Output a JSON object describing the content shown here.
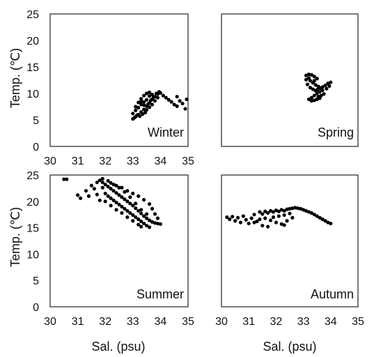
{
  "chart_data": [
    {
      "type": "scatter",
      "panel": "winter",
      "label": "Winter",
      "xlabel": "",
      "ylabel": "Temp. (℃)",
      "xlim": [
        30,
        35
      ],
      "ylim": [
        0,
        25
      ],
      "xticks": [
        "30",
        "31",
        "32",
        "33",
        "34",
        "35"
      ],
      "yticks": [
        "0",
        "5",
        "10",
        "15",
        "20",
        "25"
      ],
      "points": [
        [
          33.0,
          5.2
        ],
        [
          33.1,
          5.6
        ],
        [
          33.2,
          6.0
        ],
        [
          33.3,
          6.5
        ],
        [
          33.4,
          7.0
        ],
        [
          33.5,
          7.6
        ],
        [
          33.6,
          8.2
        ],
        [
          33.7,
          8.9
        ],
        [
          33.8,
          9.4
        ],
        [
          33.9,
          9.9
        ],
        [
          34.0,
          10.1
        ],
        [
          33.1,
          6.8
        ],
        [
          33.2,
          7.3
        ],
        [
          33.3,
          7.9
        ],
        [
          33.4,
          8.4
        ],
        [
          33.5,
          8.8
        ],
        [
          33.6,
          9.5
        ],
        [
          33.7,
          9.8
        ],
        [
          33.3,
          9.0
        ],
        [
          33.4,
          9.6
        ],
        [
          33.5,
          10.0
        ],
        [
          33.6,
          10.2
        ],
        [
          33.0,
          6.2
        ],
        [
          33.1,
          7.5
        ],
        [
          33.2,
          8.3
        ],
        [
          33.3,
          8.5
        ],
        [
          33.4,
          7.8
        ],
        [
          33.5,
          6.9
        ],
        [
          33.6,
          7.4
        ],
        [
          33.7,
          7.9
        ],
        [
          33.8,
          8.6
        ],
        [
          33.9,
          9.2
        ],
        [
          33.05,
          5.4
        ],
        [
          33.15,
          5.9
        ],
        [
          33.25,
          5.7
        ],
        [
          33.35,
          6.1
        ],
        [
          33.45,
          6.4
        ],
        [
          33.55,
          8.0
        ],
        [
          33.65,
          8.7
        ],
        [
          33.75,
          9.3
        ],
        [
          33.85,
          10.0
        ],
        [
          33.95,
          10.3
        ],
        [
          34.1,
          9.6
        ],
        [
          34.2,
          9.2
        ],
        [
          34.3,
          8.8
        ],
        [
          34.4,
          8.4
        ],
        [
          34.5,
          7.9
        ],
        [
          34.6,
          9.4
        ],
        [
          34.7,
          8.6
        ],
        [
          34.9,
          7.1
        ],
        [
          34.95,
          8.9
        ],
        [
          34.8,
          8.1
        ],
        [
          34.6,
          7.6
        ]
      ]
    },
    {
      "type": "scatter",
      "panel": "spring",
      "label": "Spring",
      "xlabel": "",
      "ylabel": "",
      "xlim": [
        30,
        35
      ],
      "ylim": [
        0,
        25
      ],
      "xticks": [],
      "yticks": [],
      "points": [
        [
          33.1,
          13.4
        ],
        [
          33.2,
          13.6
        ],
        [
          33.3,
          13.5
        ],
        [
          33.4,
          13.2
        ],
        [
          33.5,
          12.8
        ],
        [
          33.25,
          12.4
        ],
        [
          33.35,
          12.0
        ],
        [
          33.45,
          11.6
        ],
        [
          33.55,
          11.3
        ],
        [
          33.6,
          11.0
        ],
        [
          33.7,
          11.2
        ],
        [
          33.8,
          11.5
        ],
        [
          33.9,
          11.9
        ],
        [
          34.0,
          12.1
        ],
        [
          33.95,
          11.4
        ],
        [
          33.85,
          10.9
        ],
        [
          33.7,
          10.6
        ],
        [
          33.6,
          10.3
        ],
        [
          33.5,
          10.0
        ],
        [
          33.4,
          9.6
        ],
        [
          33.3,
          9.2
        ],
        [
          33.2,
          8.9
        ],
        [
          33.3,
          8.6
        ],
        [
          33.4,
          8.7
        ],
        [
          33.5,
          8.9
        ],
        [
          33.6,
          9.1
        ],
        [
          33.45,
          10.5
        ],
        [
          33.35,
          10.8
        ],
        [
          33.25,
          11.1
        ],
        [
          33.15,
          11.7
        ],
        [
          33.1,
          12.6
        ],
        [
          33.2,
          12.9
        ],
        [
          33.4,
          12.4
        ],
        [
          33.5,
          10.7
        ],
        [
          33.65,
          9.6
        ],
        [
          33.75,
          9.9
        ],
        [
          33.55,
          9.4
        ]
      ]
    },
    {
      "type": "scatter",
      "panel": "summer",
      "label": "Summer",
      "xlabel": "Sal. (psu)",
      "ylabel": "Temp. (℃)",
      "xlim": [
        30,
        35
      ],
      "ylim": [
        0,
        25
      ],
      "xticks": [
        "30",
        "31",
        "32",
        "33",
        "34",
        "35"
      ],
      "yticks": [
        "0",
        "5",
        "10",
        "15",
        "20",
        "25"
      ],
      "points": [
        [
          30.5,
          24.2
        ],
        [
          30.6,
          24.2
        ],
        [
          31.0,
          21.2
        ],
        [
          31.1,
          20.6
        ],
        [
          31.3,
          22.0
        ],
        [
          31.4,
          21.0
        ],
        [
          31.5,
          23.0
        ],
        [
          31.6,
          22.4
        ],
        [
          31.7,
          21.3
        ],
        [
          31.8,
          20.2
        ],
        [
          31.8,
          24.0
        ],
        [
          31.9,
          23.6
        ],
        [
          32.0,
          23.2
        ],
        [
          32.1,
          22.8
        ],
        [
          32.2,
          22.4
        ],
        [
          32.3,
          22.0
        ],
        [
          32.4,
          21.6
        ],
        [
          32.5,
          21.2
        ],
        [
          32.6,
          20.8
        ],
        [
          32.7,
          20.4
        ],
        [
          32.8,
          20.0
        ],
        [
          32.9,
          19.6
        ],
        [
          33.0,
          19.2
        ],
        [
          33.1,
          18.7
        ],
        [
          33.2,
          18.2
        ],
        [
          33.3,
          17.7
        ],
        [
          33.4,
          17.2
        ],
        [
          33.5,
          16.8
        ],
        [
          33.6,
          16.4
        ],
        [
          33.7,
          16.1
        ],
        [
          33.8,
          15.9
        ],
        [
          33.9,
          15.8
        ],
        [
          34.0,
          15.7
        ],
        [
          32.0,
          21.5
        ],
        [
          32.1,
          21.0
        ],
        [
          32.2,
          20.6
        ],
        [
          32.3,
          20.2
        ],
        [
          32.4,
          19.8
        ],
        [
          32.5,
          19.4
        ],
        [
          32.6,
          19.0
        ],
        [
          32.7,
          18.6
        ],
        [
          32.8,
          18.2
        ],
        [
          32.9,
          17.8
        ],
        [
          33.0,
          17.4
        ],
        [
          33.1,
          17.0
        ],
        [
          33.2,
          16.6
        ],
        [
          33.3,
          16.2
        ],
        [
          33.4,
          15.8
        ],
        [
          33.5,
          15.4
        ],
        [
          33.6,
          15.1
        ],
        [
          32.2,
          23.5
        ],
        [
          32.4,
          23.0
        ],
        [
          32.6,
          22.6
        ],
        [
          32.8,
          22.0
        ],
        [
          33.0,
          21.5
        ],
        [
          33.2,
          21.0
        ],
        [
          33.4,
          20.3
        ],
        [
          33.6,
          19.5
        ],
        [
          33.7,
          18.6
        ],
        [
          33.8,
          17.6
        ],
        [
          33.9,
          16.8
        ],
        [
          33.5,
          17.6
        ],
        [
          33.3,
          18.4
        ],
        [
          33.1,
          19.6
        ],
        [
          32.9,
          20.8
        ],
        [
          32.7,
          21.8
        ],
        [
          32.5,
          22.6
        ],
        [
          32.3,
          23.2
        ],
        [
          32.1,
          23.9
        ],
        [
          31.9,
          22.6
        ],
        [
          32.0,
          20.0
        ],
        [
          32.2,
          19.2
        ],
        [
          32.4,
          18.4
        ],
        [
          32.6,
          17.8
        ],
        [
          32.8,
          17.0
        ],
        [
          33.0,
          16.3
        ],
        [
          33.2,
          15.6
        ],
        [
          33.3,
          15.2
        ],
        [
          31.7,
          23.6
        ],
        [
          31.9,
          24.3
        ]
      ]
    },
    {
      "type": "scatter",
      "panel": "autumn",
      "label": "Autumn",
      "xlabel": "Sal. (psu)",
      "ylabel": "",
      "xlim": [
        30,
        35
      ],
      "ylim": [
        0,
        25
      ],
      "xticks": [
        "30",
        "31",
        "32",
        "33",
        "34",
        "35"
      ],
      "yticks": [],
      "points": [
        [
          30.2,
          17.0
        ],
        [
          30.3,
          16.6
        ],
        [
          30.4,
          17.1
        ],
        [
          30.5,
          16.3
        ],
        [
          30.6,
          16.9
        ],
        [
          30.7,
          16.0
        ],
        [
          30.8,
          17.2
        ],
        [
          30.9,
          16.5
        ],
        [
          31.0,
          15.8
        ],
        [
          31.1,
          16.8
        ],
        [
          31.2,
          17.5
        ],
        [
          31.3,
          16.2
        ],
        [
          31.4,
          18.0
        ],
        [
          31.5,
          17.6
        ],
        [
          31.6,
          18.1
        ],
        [
          31.7,
          17.8
        ],
        [
          31.8,
          18.2
        ],
        [
          31.9,
          18.0
        ],
        [
          32.0,
          18.3
        ],
        [
          32.1,
          18.1
        ],
        [
          32.2,
          18.4
        ],
        [
          32.3,
          18.2
        ],
        [
          32.4,
          18.5
        ],
        [
          32.5,
          18.6
        ],
        [
          32.6,
          18.7
        ],
        [
          32.7,
          18.8
        ],
        [
          32.8,
          18.7
        ],
        [
          32.9,
          18.6
        ],
        [
          33.0,
          18.4
        ],
        [
          33.1,
          18.2
        ],
        [
          33.2,
          18.0
        ],
        [
          33.3,
          17.8
        ],
        [
          33.4,
          17.5
        ],
        [
          33.5,
          17.2
        ],
        [
          33.6,
          16.9
        ],
        [
          33.7,
          16.6
        ],
        [
          33.8,
          16.3
        ],
        [
          33.9,
          16.0
        ],
        [
          34.0,
          15.8
        ],
        [
          31.6,
          16.8
        ],
        [
          31.8,
          16.4
        ],
        [
          32.0,
          16.0
        ],
        [
          32.2,
          15.7
        ],
        [
          32.4,
          16.3
        ],
        [
          32.6,
          16.9
        ],
        [
          32.1,
          17.2
        ],
        [
          31.9,
          17.0
        ],
        [
          32.3,
          17.4
        ],
        [
          32.5,
          17.7
        ],
        [
          31.5,
          15.4
        ],
        [
          31.7,
          15.2
        ],
        [
          32.3,
          15.5
        ],
        [
          31.4,
          16.6
        ],
        [
          31.2,
          16.0
        ]
      ]
    }
  ]
}
